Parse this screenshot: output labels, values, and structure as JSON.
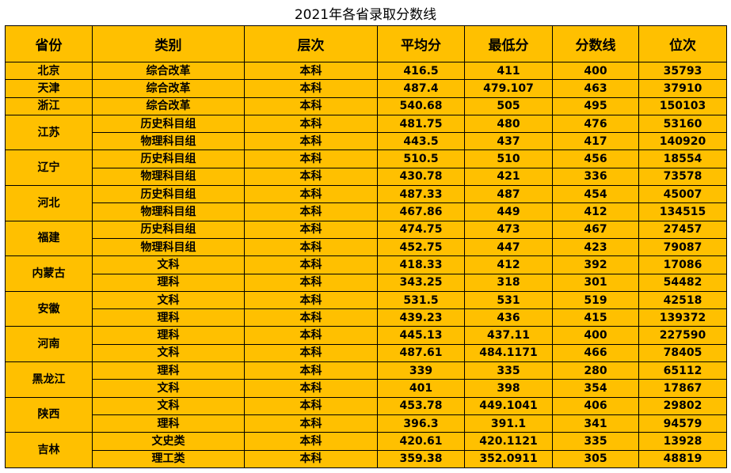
{
  "title": "2021年各省录取分数线",
  "headers": [
    "省份",
    "类别",
    "层次",
    "平均分",
    "最低分",
    "分数线",
    "位次"
  ],
  "groups": [
    {
      "province": "北京",
      "rows": [
        [
          "综合改革",
          "本科",
          416.5,
          411,
          400,
          35793
        ]
      ]
    },
    {
      "province": "天津",
      "rows": [
        [
          "综合改革",
          "本科",
          487.4,
          479.107,
          463,
          37910
        ]
      ]
    },
    {
      "province": "浙江",
      "rows": [
        [
          "综合改革",
          "本科",
          540.68,
          505,
          495,
          150103
        ]
      ]
    },
    {
      "province": "江苏",
      "rows": [
        [
          "历史科目组",
          "本科",
          481.75,
          480,
          476,
          53160
        ],
        [
          "物理科目组",
          "本科",
          443.5,
          437,
          417,
          140920
        ]
      ]
    },
    {
      "province": "辽宁",
      "rows": [
        [
          "历史科目组",
          "本科",
          510.5,
          510,
          456,
          18554
        ],
        [
          "物理科目组",
          "本科",
          430.78,
          421,
          336,
          73578
        ]
      ]
    },
    {
      "province": "河北",
      "rows": [
        [
          "历史科目组",
          "本科",
          487.33,
          487,
          454,
          45007
        ],
        [
          "物理科目组",
          "本科",
          467.86,
          449,
          412,
          134515
        ]
      ]
    },
    {
      "province": "福建",
      "rows": [
        [
          "历史科目组",
          "本科",
          474.75,
          473,
          467,
          27457
        ],
        [
          "物理科目组",
          "本科",
          452.75,
          447,
          423,
          79087
        ]
      ]
    },
    {
      "province": "内蒙古",
      "rows": [
        [
          "文科",
          "本科",
          418.33,
          412,
          392,
          17086
        ],
        [
          "理科",
          "本科",
          343.25,
          318,
          301,
          54482
        ]
      ]
    },
    {
      "province": "安徽",
      "rows": [
        [
          "文科",
          "本科",
          531.5,
          531,
          519,
          42518
        ],
        [
          "理科",
          "本科",
          439.23,
          436,
          415,
          139372
        ]
      ]
    },
    {
      "province": "河南",
      "rows": [
        [
          "理科",
          "本科",
          445.13,
          437.11,
          400,
          227590
        ],
        [
          "文科",
          "本科",
          487.61,
          484.1171,
          466,
          78405
        ]
      ]
    },
    {
      "province": "黑龙江",
      "rows": [
        [
          "理科",
          "本科",
          339,
          335,
          280,
          65112
        ],
        [
          "文科",
          "本科",
          401,
          398,
          354,
          17867
        ]
      ]
    },
    {
      "province": "陕西",
      "rows": [
        [
          "文科",
          "本科",
          453.78,
          449.1041,
          406,
          29802
        ],
        [
          "理科",
          "本科",
          396.3,
          391.1,
          341,
          94579
        ]
      ]
    },
    {
      "province": "吉林",
      "rows": [
        [
          "文史类",
          "本科",
          420.61,
          420.1121,
          335,
          13928
        ],
        [
          "理工类",
          "本科",
          359.38,
          352.0911,
          305,
          48819
        ]
      ]
    }
  ]
}
